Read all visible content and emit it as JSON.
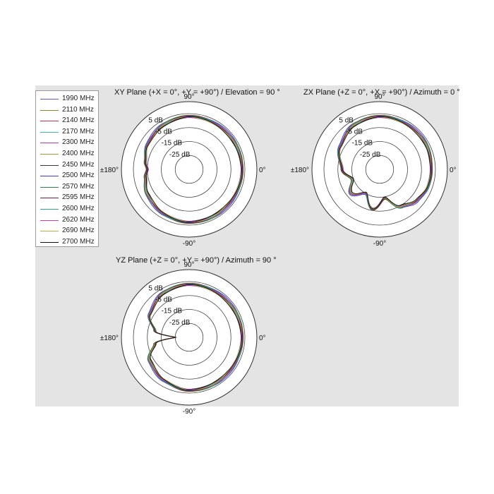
{
  "legend": [
    {
      "label": "1990 MHz",
      "color": "#5b5bd6"
    },
    {
      "label": "2110 MHz",
      "color": "#8a8a2c"
    },
    {
      "label": "2140 MHz",
      "color": "#c8324b"
    },
    {
      "label": "2170 MHz",
      "color": "#39b8b8"
    },
    {
      "label": "2300 MHz",
      "color": "#b040b0"
    },
    {
      "label": "2400 MHz",
      "color": "#a89a2e"
    },
    {
      "label": "2450 MHz",
      "color": "#3a3a3a"
    },
    {
      "label": "2500 MHz",
      "color": "#3a3ad0"
    },
    {
      "label": "2570 MHz",
      "color": "#2a8a44"
    },
    {
      "label": "2595 MHz",
      "color": "#7a1a3a"
    },
    {
      "label": "2600 MHz",
      "color": "#2fa0a0"
    },
    {
      "label": "2620 MHz",
      "color": "#d23aa8"
    },
    {
      "label": "2690 MHz",
      "color": "#b8b040"
    },
    {
      "label": "2700 MHz",
      "color": "#101010"
    }
  ],
  "plots": [
    {
      "title": "XY Plane (+X = 0°, +Y = +90°) / Elevation = 90 °",
      "top_label": "90°",
      "bottom_label": "-90°",
      "left_label": "±180°",
      "right_label": "0°",
      "rings": [
        "5 dB",
        "-5 dB",
        "-15 dB",
        "-25 dB"
      ]
    },
    {
      "title": "ZX Plane (+Z = 0°, +X = +90°) / Azimuth = 0 °",
      "top_label": "90°",
      "bottom_label": "-90°",
      "left_label": "±180°",
      "right_label": "0°",
      "rings": [
        "5 dB",
        "-5 dB",
        "-15 dB",
        "-25 dB"
      ]
    },
    {
      "title": "YZ Plane (+Z = 0°, +Y = +90°) / Azimuth = 90 °",
      "top_label": "90°",
      "bottom_label": "-90°",
      "left_label": "±180°",
      "right_label": "0°",
      "rings": [
        "5 dB",
        "-5 dB",
        "-15 dB",
        "-25 dB"
      ]
    }
  ],
  "chart_data": [
    {
      "type": "polar",
      "title": "XY Plane (+X = 0°, +Y = +90°) / Elevation = 90 °",
      "r_ticks": [
        "5 dB",
        "-5 dB",
        "-15 dB",
        "-25 dB"
      ],
      "angle_labels": [
        "0°",
        "90°",
        "±180°",
        "-90°"
      ],
      "series_names": [
        "1990 MHz",
        "2110 MHz",
        "2140 MHz",
        "2170 MHz",
        "2300 MHz",
        "2400 MHz",
        "2450 MHz",
        "2500 MHz",
        "2570 MHz",
        "2595 MHz",
        "2600 MHz",
        "2620 MHz",
        "2690 MHz",
        "2700 MHz"
      ],
      "angles_deg": [
        0,
        30,
        60,
        90,
        120,
        150,
        170,
        180,
        190,
        210,
        240,
        270,
        300,
        330
      ],
      "gain_db": [
        3,
        3,
        3,
        3,
        2,
        0,
        -3,
        -5,
        -3,
        0,
        2,
        3,
        3,
        3
      ]
    },
    {
      "type": "polar",
      "title": "ZX Plane (+Z = 0°, +X = +90°) / Azimuth = 0 °",
      "r_ticks": [
        "5 dB",
        "-5 dB",
        "-15 dB",
        "-25 dB"
      ],
      "angle_labels": [
        "0°",
        "90°",
        "±180°",
        "-90°"
      ],
      "series_names": [
        "1990 MHz",
        "2110 MHz",
        "2140 MHz",
        "2170 MHz",
        "2300 MHz",
        "2400 MHz",
        "2450 MHz",
        "2500 MHz",
        "2570 MHz",
        "2595 MHz",
        "2600 MHz",
        "2620 MHz",
        "2690 MHz",
        "2700 MHz"
      ],
      "angles_deg": [
        0,
        30,
        60,
        90,
        120,
        150,
        180,
        200,
        220,
        240,
        260,
        280,
        300,
        320,
        340
      ],
      "gain_db": [
        2,
        3,
        3,
        3,
        2,
        -2,
        -8,
        -14,
        -8,
        -15,
        -6,
        -14,
        -4,
        0,
        2
      ]
    },
    {
      "type": "polar",
      "title": "YZ Plane (+Z = 0°, +Y = +90°) / Azimuth = 90 °",
      "r_ticks": [
        "5 dB",
        "-5 dB",
        "-15 dB",
        "-25 dB"
      ],
      "angle_labels": [
        "0°",
        "90°",
        "±180°",
        "-90°"
      ],
      "series_names": [
        "1990 MHz",
        "2110 MHz",
        "2140 MHz",
        "2170 MHz",
        "2300 MHz",
        "2400 MHz",
        "2450 MHz",
        "2500 MHz",
        "2570 MHz",
        "2595 MHz",
        "2600 MHz",
        "2620 MHz",
        "2690 MHz",
        "2700 MHz"
      ],
      "angles_deg": [
        0,
        30,
        60,
        90,
        120,
        150,
        170,
        180,
        190,
        210,
        240,
        270,
        300,
        330
      ],
      "gain_db": [
        3,
        3,
        3,
        3,
        2,
        -2,
        -10,
        -25,
        -10,
        -2,
        1,
        3,
        3,
        3
      ]
    }
  ]
}
